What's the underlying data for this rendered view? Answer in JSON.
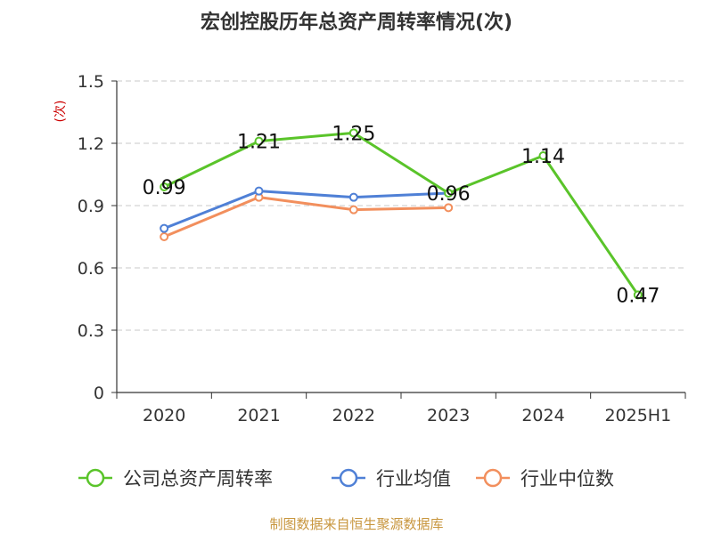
{
  "chart_data": {
    "type": "line",
    "title": "宏创控股历年总资产周转率情况(次)",
    "ylabel": "(次)",
    "categories": [
      "2020",
      "2021",
      "2022",
      "2023",
      "2024",
      "2025H1"
    ],
    "ylim": [
      0,
      1.5
    ],
    "yticks": [
      "0",
      "0.3",
      "0.6",
      "0.9",
      "1.2",
      "1.5"
    ],
    "grid": true,
    "legend_position": "bottom",
    "series": [
      {
        "name": "公司总资产周转率",
        "color": "#5ac42a",
        "values": [
          0.99,
          1.21,
          1.25,
          0.96,
          1.14,
          0.47
        ],
        "data_labels": [
          "0.99",
          "1.21",
          "1.25",
          "0.96",
          "1.14",
          "0.47"
        ]
      },
      {
        "name": "行业均值",
        "color": "#4f80d6",
        "values": [
          0.79,
          0.97,
          0.94,
          0.96,
          null,
          null
        ]
      },
      {
        "name": "行业中位数",
        "color": "#f28f5d",
        "values": [
          0.75,
          0.94,
          0.88,
          0.89,
          null,
          null
        ]
      }
    ]
  },
  "source": "制图数据来自恒生聚源数据库"
}
